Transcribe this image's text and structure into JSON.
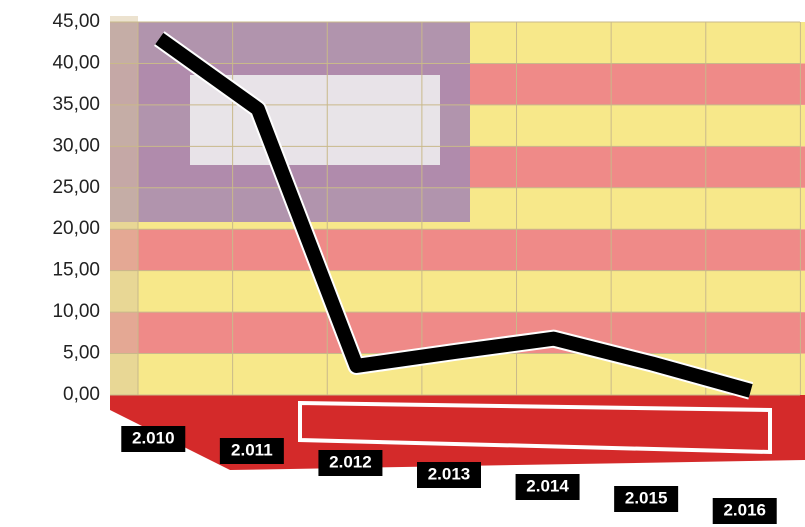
{
  "chart_data": {
    "type": "line",
    "categories": [
      "2.010",
      "2.011",
      "2.012",
      "2.013",
      "2.014",
      "2.015",
      "2.016"
    ],
    "values": [
      43,
      34.5,
      3.5,
      5.2,
      6.8,
      3.8,
      0.5
    ],
    "color": "#000000",
    "ylim": [
      0,
      45
    ],
    "yticks": [
      {
        "value": 0,
        "label": "0,00"
      },
      {
        "value": 5,
        "label": "5,00"
      },
      {
        "value": 10,
        "label": "10,00"
      },
      {
        "value": 15,
        "label": "15,00"
      },
      {
        "value": 20,
        "label": "20,00"
      },
      {
        "value": 25,
        "label": "25,00"
      },
      {
        "value": 30,
        "label": "30,00"
      },
      {
        "value": 35,
        "label": "35,00"
      },
      {
        "value": 40,
        "label": "40,00"
      },
      {
        "value": 45,
        "label": "45,00"
      }
    ],
    "grid": true
  }
}
